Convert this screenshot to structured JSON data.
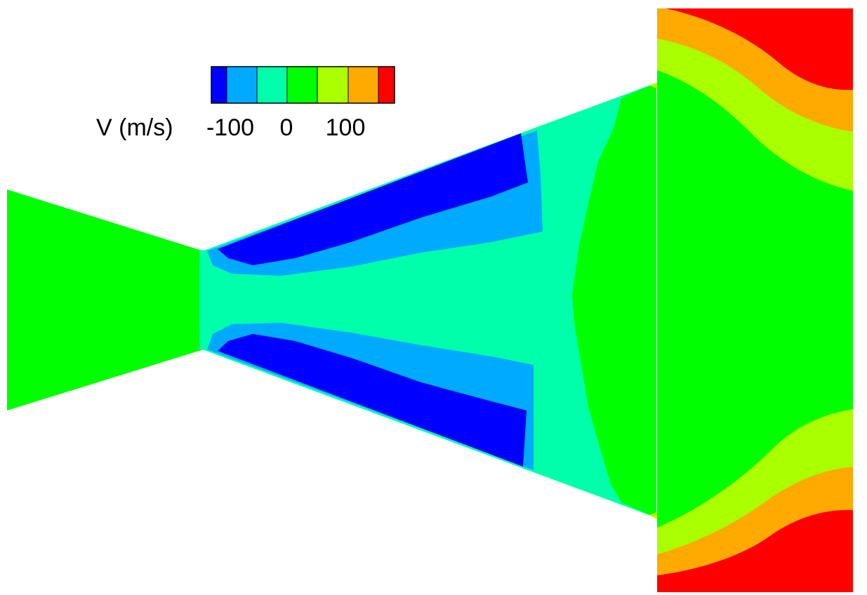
{
  "legend": {
    "variable_label": "V (m/s)",
    "tick_labels": [
      "-100",
      "0",
      "100"
    ]
  },
  "contour_levels": [
    {
      "name": "level-1",
      "color": "#0000FF"
    },
    {
      "name": "level-2",
      "color": "#00AAFF"
    },
    {
      "name": "level-3",
      "color": "#00FFAA"
    },
    {
      "name": "level-4",
      "color": "#00FF00"
    },
    {
      "name": "level-5",
      "color": "#AAFF00"
    },
    {
      "name": "level-6",
      "color": "#FFAA00"
    },
    {
      "name": "level-7",
      "color": "#FF0000"
    }
  ]
}
